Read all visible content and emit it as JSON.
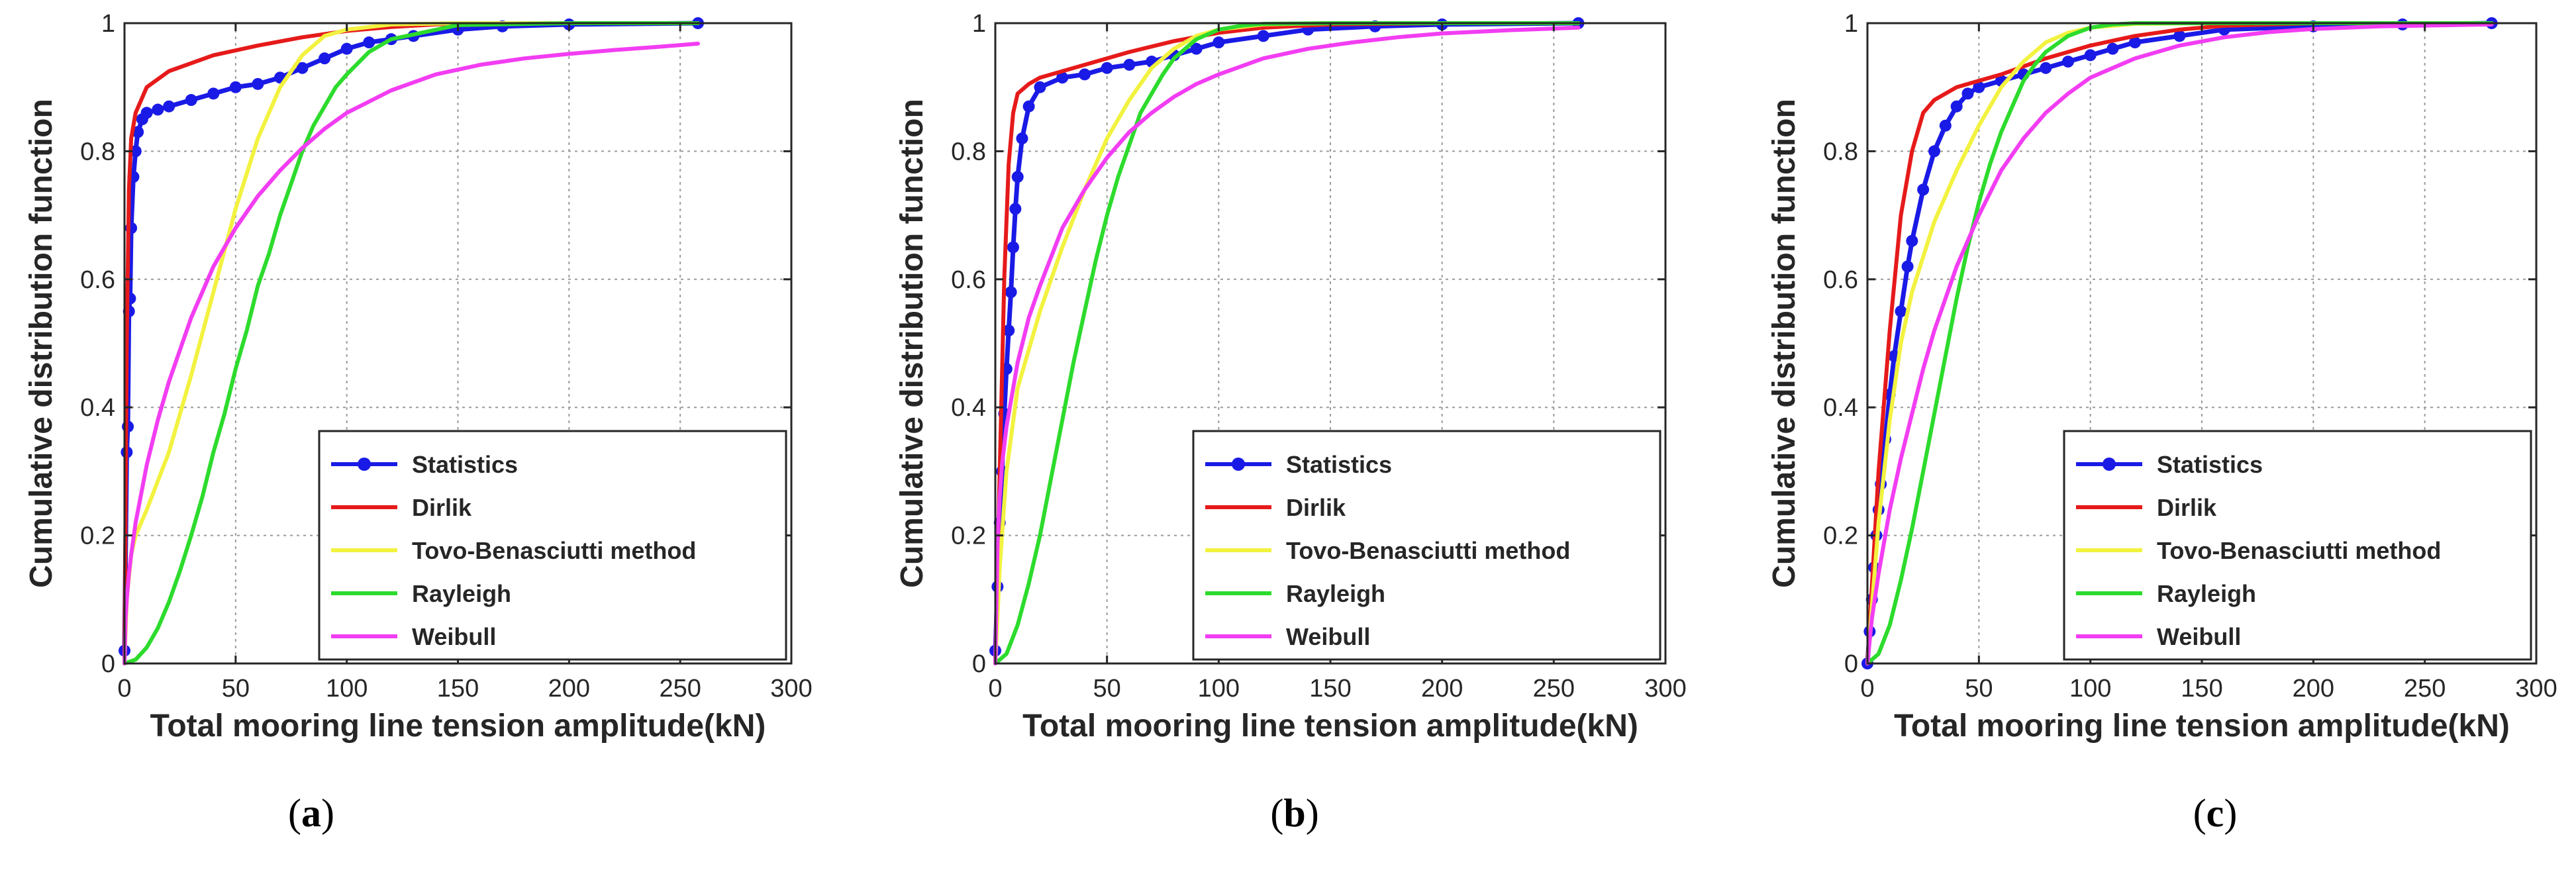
{
  "colors": {
    "statistics": "#1a1ae6",
    "dirlik": "#e61a1a",
    "tovo": "#f2f240",
    "rayleigh": "#2ddb2d",
    "weibull": "#f23df2",
    "grid": "#9a9a9a",
    "axis": "#262626"
  },
  "chart_data": [
    {
      "type": "line",
      "panel": "a",
      "panel_label": "a",
      "xlabel": "Total mooring line tension amplitude(kN)",
      "ylabel": "Cumulative distribution function",
      "xlim": [
        0,
        300
      ],
      "ylim": [
        0,
        1
      ],
      "xticks": [
        "0",
        "50",
        "100",
        "150",
        "200",
        "250",
        "300"
      ],
      "yticks": [
        "0",
        "0.2",
        "0.4",
        "0.6",
        "0.8",
        "1"
      ],
      "grid": true,
      "legend_position": "bottom-right",
      "legend": [
        "Statistics",
        "Dirlik",
        "Tovo-Benasciutti method",
        "Rayleigh",
        "Weibull"
      ],
      "series": [
        {
          "name": "Statistics",
          "x": [
            0,
            1,
            1.5,
            2,
            2.5,
            3,
            4,
            5,
            6,
            8,
            10,
            15,
            20,
            30,
            40,
            50,
            60,
            70,
            80,
            90,
            100,
            110,
            120,
            130,
            150,
            170,
            200,
            258
          ],
          "y": [
            0.02,
            0.33,
            0.37,
            0.55,
            0.57,
            0.68,
            0.76,
            0.8,
            0.83,
            0.85,
            0.86,
            0.865,
            0.87,
            0.88,
            0.89,
            0.9,
            0.905,
            0.915,
            0.93,
            0.945,
            0.96,
            0.97,
            0.975,
            0.98,
            0.99,
            0.995,
            0.998,
            1.0
          ]
        },
        {
          "name": "Dirlik",
          "x": [
            0,
            1,
            2,
            3,
            5,
            10,
            20,
            40,
            60,
            80,
            100,
            120,
            140,
            160,
            200,
            258
          ],
          "y": [
            0,
            0.5,
            0.74,
            0.82,
            0.86,
            0.9,
            0.925,
            0.95,
            0.965,
            0.978,
            0.988,
            0.994,
            0.998,
            1.0,
            1.0,
            1.0
          ]
        },
        {
          "name": "Tovo-Benasciutti method",
          "x": [
            0,
            1,
            3,
            5,
            10,
            20,
            30,
            40,
            50,
            60,
            70,
            80,
            90,
            100,
            120,
            150,
            200,
            258
          ],
          "y": [
            0,
            0.1,
            0.17,
            0.2,
            0.24,
            0.33,
            0.45,
            0.58,
            0.71,
            0.82,
            0.9,
            0.95,
            0.98,
            0.99,
            0.998,
            1.0,
            1.0,
            1.0
          ]
        },
        {
          "name": "Rayleigh",
          "x": [
            0,
            5,
            10,
            15,
            20,
            25,
            30,
            35,
            40,
            45,
            50,
            55,
            60,
            65,
            70,
            75,
            80,
            85,
            90,
            95,
            100,
            110,
            120,
            150,
            200,
            258
          ],
          "y": [
            0,
            0.006,
            0.025,
            0.055,
            0.096,
            0.145,
            0.2,
            0.26,
            0.33,
            0.39,
            0.46,
            0.52,
            0.59,
            0.64,
            0.7,
            0.75,
            0.8,
            0.84,
            0.87,
            0.9,
            0.92,
            0.955,
            0.975,
            0.997,
            1.0,
            1.0
          ]
        },
        {
          "name": "Weibull",
          "x": [
            0,
            0.5,
            1,
            2,
            3,
            5,
            10,
            15,
            20,
            30,
            40,
            50,
            60,
            70,
            80,
            90,
            100,
            120,
            140,
            160,
            180,
            200,
            220,
            240,
            258
          ],
          "y": [
            0,
            0.07,
            0.1,
            0.14,
            0.17,
            0.22,
            0.31,
            0.38,
            0.44,
            0.54,
            0.62,
            0.68,
            0.73,
            0.77,
            0.805,
            0.835,
            0.86,
            0.895,
            0.92,
            0.935,
            0.945,
            0.952,
            0.958,
            0.963,
            0.968
          ]
        }
      ]
    },
    {
      "type": "line",
      "panel": "b",
      "panel_label": "b",
      "xlabel": "Total mooring line tension amplitude(kN)",
      "ylabel": "Cumulative distribution function",
      "xlim": [
        0,
        300
      ],
      "ylim": [
        0,
        1
      ],
      "xticks": [
        "0",
        "50",
        "100",
        "150",
        "200",
        "250",
        "300"
      ],
      "yticks": [
        "0",
        "0.2",
        "0.4",
        "0.6",
        "0.8",
        "1"
      ],
      "grid": true,
      "legend_position": "bottom-right",
      "legend": [
        "Statistics",
        "Dirlik",
        "Tovo-Benasciutti method",
        "Rayleigh",
        "Weibull"
      ],
      "series": [
        {
          "name": "Statistics",
          "x": [
            0,
            1,
            2,
            3,
            4,
            5,
            6,
            7,
            8,
            9,
            10,
            12,
            15,
            20,
            30,
            40,
            50,
            60,
            70,
            80,
            90,
            100,
            120,
            140,
            170,
            200,
            261
          ],
          "y": [
            0.02,
            0.12,
            0.22,
            0.3,
            0.39,
            0.46,
            0.52,
            0.58,
            0.65,
            0.71,
            0.76,
            0.82,
            0.87,
            0.9,
            0.915,
            0.92,
            0.93,
            0.935,
            0.94,
            0.95,
            0.96,
            0.97,
            0.98,
            0.99,
            0.995,
            0.998,
            1.0
          ]
        },
        {
          "name": "Dirlik",
          "x": [
            0,
            2,
            4,
            6,
            8,
            10,
            15,
            20,
            40,
            60,
            80,
            100,
            120,
            150,
            200,
            261
          ],
          "y": [
            0,
            0.3,
            0.6,
            0.78,
            0.86,
            0.89,
            0.905,
            0.915,
            0.935,
            0.955,
            0.972,
            0.985,
            0.993,
            0.998,
            1.0,
            1.0
          ]
        },
        {
          "name": "Tovo-Benasciutti method",
          "x": [
            0,
            2,
            5,
            10,
            15,
            20,
            30,
            40,
            50,
            60,
            70,
            80,
            90,
            100,
            120,
            150,
            200,
            261
          ],
          "y": [
            0,
            0.15,
            0.3,
            0.43,
            0.49,
            0.55,
            0.65,
            0.74,
            0.82,
            0.88,
            0.93,
            0.96,
            0.98,
            0.99,
            0.998,
            1.0,
            1.0,
            1.0
          ]
        },
        {
          "name": "Rayleigh",
          "x": [
            0,
            5,
            10,
            15,
            20,
            25,
            30,
            35,
            40,
            45,
            50,
            55,
            60,
            65,
            70,
            75,
            80,
            85,
            90,
            100,
            110,
            120,
            150,
            200,
            261
          ],
          "y": [
            0,
            0.015,
            0.06,
            0.125,
            0.2,
            0.29,
            0.38,
            0.47,
            0.55,
            0.63,
            0.7,
            0.76,
            0.81,
            0.86,
            0.89,
            0.92,
            0.945,
            0.96,
            0.975,
            0.99,
            0.996,
            0.999,
            1.0,
            1.0,
            1.0
          ]
        },
        {
          "name": "Weibull",
          "x": [
            0,
            1,
            2,
            3,
            5,
            10,
            15,
            20,
            30,
            40,
            50,
            60,
            70,
            80,
            90,
            100,
            120,
            140,
            160,
            180,
            200,
            230,
            261
          ],
          "y": [
            0,
            0.19,
            0.26,
            0.31,
            0.37,
            0.47,
            0.54,
            0.59,
            0.68,
            0.74,
            0.79,
            0.83,
            0.86,
            0.885,
            0.905,
            0.92,
            0.945,
            0.96,
            0.97,
            0.978,
            0.984,
            0.989,
            0.993
          ]
        }
      ]
    },
    {
      "type": "line",
      "panel": "c",
      "panel_label": "c",
      "xlabel": "Total mooring line tension amplitude(kN)",
      "ylabel": "Cumulative distribution function",
      "xlim": [
        0,
        300
      ],
      "ylim": [
        0,
        1
      ],
      "xticks": [
        "0",
        "50",
        "100",
        "150",
        "200",
        "250",
        "300"
      ],
      "yticks": [
        "0",
        "0.2",
        "0.4",
        "0.6",
        "0.8",
        "1"
      ],
      "grid": true,
      "legend_position": "bottom-right",
      "legend": [
        "Statistics",
        "Dirlik",
        "Tovo-Benasciutti method",
        "Rayleigh",
        "Weibull"
      ],
      "series": [
        {
          "name": "Statistics",
          "x": [
            0,
            1,
            2,
            3,
            4,
            5,
            6,
            8,
            10,
            12,
            15,
            18,
            20,
            25,
            30,
            35,
            40,
            45,
            50,
            60,
            70,
            80,
            90,
            100,
            110,
            120,
            140,
            160,
            200,
            240,
            280
          ],
          "y": [
            0.0,
            0.05,
            0.1,
            0.15,
            0.2,
            0.24,
            0.28,
            0.35,
            0.42,
            0.48,
            0.55,
            0.62,
            0.66,
            0.74,
            0.8,
            0.84,
            0.87,
            0.89,
            0.9,
            0.91,
            0.92,
            0.93,
            0.94,
            0.95,
            0.96,
            0.97,
            0.98,
            0.99,
            0.995,
            0.998,
            1.0
          ]
        },
        {
          "name": "Dirlik",
          "x": [
            0,
            5,
            10,
            15,
            20,
            25,
            30,
            40,
            50,
            60,
            80,
            100,
            120,
            140,
            160,
            200,
            280
          ],
          "y": [
            0,
            0.3,
            0.52,
            0.7,
            0.8,
            0.86,
            0.88,
            0.9,
            0.91,
            0.92,
            0.945,
            0.965,
            0.98,
            0.99,
            0.996,
            1.0,
            1.0
          ]
        },
        {
          "name": "Tovo-Benasciutti method",
          "x": [
            0,
            5,
            10,
            15,
            20,
            30,
            40,
            50,
            60,
            70,
            80,
            90,
            100,
            120,
            150,
            200,
            280
          ],
          "y": [
            0,
            0.22,
            0.38,
            0.5,
            0.58,
            0.69,
            0.77,
            0.84,
            0.9,
            0.94,
            0.97,
            0.985,
            0.993,
            0.999,
            1.0,
            1.0,
            1.0
          ]
        },
        {
          "name": "Rayleigh",
          "x": [
            0,
            5,
            10,
            15,
            20,
            25,
            30,
            35,
            40,
            45,
            50,
            55,
            60,
            65,
            70,
            75,
            80,
            90,
            100,
            110,
            120,
            150,
            200,
            280
          ],
          "y": [
            0,
            0.015,
            0.06,
            0.13,
            0.21,
            0.3,
            0.39,
            0.48,
            0.57,
            0.65,
            0.72,
            0.78,
            0.83,
            0.87,
            0.91,
            0.935,
            0.955,
            0.98,
            0.993,
            0.998,
            1.0,
            1.0,
            1.0,
            1.0
          ]
        },
        {
          "name": "Weibull",
          "x": [
            0,
            2,
            5,
            10,
            15,
            20,
            25,
            30,
            40,
            50,
            60,
            70,
            80,
            90,
            100,
            120,
            140,
            160,
            180,
            200,
            230,
            280
          ],
          "y": [
            0,
            0.07,
            0.14,
            0.24,
            0.32,
            0.39,
            0.46,
            0.52,
            0.62,
            0.7,
            0.77,
            0.82,
            0.86,
            0.89,
            0.915,
            0.945,
            0.965,
            0.978,
            0.986,
            0.991,
            0.995,
            0.998
          ]
        }
      ]
    }
  ]
}
